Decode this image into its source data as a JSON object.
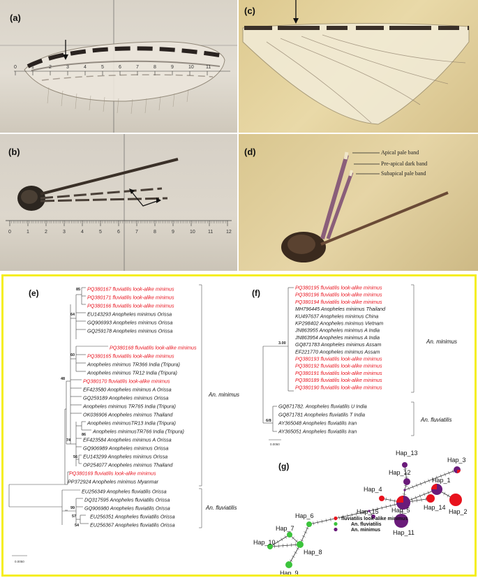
{
  "panels": {
    "a": {
      "label": "(a)",
      "ruler_ticks": [
        "0",
        "1",
        "2",
        "3",
        "4",
        "5",
        "6",
        "7",
        "8",
        "9",
        "10",
        "11"
      ]
    },
    "b": {
      "label": "(b)",
      "ruler_ticks": [
        "0",
        "1",
        "2",
        "3",
        "4",
        "5",
        "6",
        "7",
        "8",
        "9",
        "10",
        "11",
        "12"
      ]
    },
    "c": {
      "label": "(c)"
    },
    "d": {
      "label": "(d)",
      "annotations": [
        "Apical pale band",
        "Pre-apical dark band",
        "Subapical pale band"
      ]
    },
    "e": {
      "label": "(e)",
      "tips": [
        {
          "text": "PQ380167 fluviatilis look-alike minimus",
          "color": "red"
        },
        {
          "text": "PQ380171 fluviatilis look-alike minimus",
          "color": "red"
        },
        {
          "text": "PQ380166 fluviatilis look-alike minimus",
          "color": "red"
        },
        {
          "text": "EU143293 Anopheles minimus Orissa",
          "color": "black"
        },
        {
          "text": "GQ906993 Anopheles minimus Orissa",
          "color": "black"
        },
        {
          "text": "GQ259178 Anopheles minimus Orissa",
          "color": "black"
        },
        {
          "text": "PQ380168 fluviatilis look-alike minimus",
          "color": "red"
        },
        {
          "text": "PQ380165 fluviatilis look-alike minimus",
          "color": "red"
        },
        {
          "text": "Anopheles minimus TR366 India (Tripura)",
          "color": "black"
        },
        {
          "text": "Anopheles minimus TR12 India (Tripura)",
          "color": "black"
        },
        {
          "text": "PQ380170 fluviatilis look-alike minimus",
          "color": "red"
        },
        {
          "text": "EF423580 Anopheles minimus A Orissa",
          "color": "black"
        },
        {
          "text": "GQ259189 Anopheles minimus Orissa",
          "color": "black"
        },
        {
          "text": "Anopheles minimus TR765 India (Tripura)",
          "color": "black"
        },
        {
          "text": "OK036906 Anopheles minimus Thailand",
          "color": "black"
        },
        {
          "text": "Anopheles minimusTR13 India (Tripura)",
          "color": "black"
        },
        {
          "text": "Anopheles minimusTR766 India (Tripura)",
          "color": "black"
        },
        {
          "text": "EF423584 Anopheles minimus A Orissa",
          "color": "black"
        },
        {
          "text": "GQ906989 Anopheles minimus Orissa",
          "color": "black"
        },
        {
          "text": "EU143299 Anopheles minimus Orissa",
          "color": "black"
        },
        {
          "text": "OP254077 Anopheles minimus Thailand",
          "color": "black"
        },
        {
          "text": "PQ380169 fluviatilis look-alike minimus",
          "color": "red"
        },
        {
          "text": "PP372924 Anopheles minimus Myanmar",
          "color": "black"
        },
        {
          "text": "EU256349 Anopheles fluviatilis Orissa",
          "color": "black"
        },
        {
          "text": "DQ317595 Anopheles fluviatilis Orissa",
          "color": "black"
        },
        {
          "text": "GQ906980 Anopheles fluviatilis Orissa",
          "color": "black"
        },
        {
          "text": "EU256351 Anopheles fluviatilis Orissa",
          "color": "black"
        },
        {
          "text": "EU256367 Anopheles fluviatilis Orissa",
          "color": "black"
        }
      ],
      "bootstrap": [
        "85",
        "64",
        "60",
        "48",
        "74",
        "86",
        "56",
        "99",
        "57",
        "54"
      ],
      "clades": [
        "An. minimus",
        "An. fluviatilis"
      ],
      "scale": "0.0050"
    },
    "f": {
      "label": "(f)",
      "tips": [
        {
          "text": "PQ380195 fluviatilis look-alike minimus",
          "color": "red"
        },
        {
          "text": "PQ380196 fluviatilis look-alike minimus",
          "color": "red"
        },
        {
          "text": "PQ380194 fluviatilis look-alike minimus",
          "color": "red"
        },
        {
          "text": "MH796445 Anopheles minimus Thailand",
          "color": "black"
        },
        {
          "text": "KU497637 Anopheles minimus China",
          "color": "black"
        },
        {
          "text": "KP298402 Anopheles minimus Vietnam",
          "color": "black"
        },
        {
          "text": "JN863955 Anopheles minimus A India",
          "color": "black"
        },
        {
          "text": "JN863954 Anopheles minimus A India",
          "color": "black"
        },
        {
          "text": "GQ871783 Anopheles minimus Assam",
          "color": "black"
        },
        {
          "text": "EF221770 Anopheles minimus Assam",
          "color": "black"
        },
        {
          "text": "PQ380193 fluviatilis look-alike minimus",
          "color": "red"
        },
        {
          "text": "PQ380192 fluviatilis look-alike minimus",
          "color": "red"
        },
        {
          "text": "PQ380191 fluviatilis look-alike minimus",
          "color": "red"
        },
        {
          "text": "PQ380189 fluviatilis look-alike minimus",
          "color": "red"
        },
        {
          "text": "PQ380190 fluviatilis look-alike minimus",
          "color": "red"
        },
        {
          "text": "GQ871782. Anopheles fluviatilis U India",
          "color": "black"
        },
        {
          "text": "GQ871781 Anopheles fluviatilis T India",
          "color": "black"
        },
        {
          "text": "AY365048 Anopheles fluviatilis Iran",
          "color": "black"
        },
        {
          "text": "AY365051 Anopheles fluviatilis Iran",
          "color": "black"
        }
      ],
      "bootstrap": [
        "3.00",
        "6/8"
      ],
      "clades": [
        "An. minimus",
        "An. fluviatilis"
      ],
      "scale": "0.0050"
    },
    "g": {
      "label": "(g)",
      "haplotypes": [
        "Hap_1",
        "Hap_2",
        "Hap_3",
        "Hap_4",
        "Hap_5",
        "Hap_6",
        "Hap_7",
        "Hap_8",
        "Hap_9",
        "Hap_10",
        "Hap_11",
        "Hap_12",
        "Hap_13",
        "Hap_14",
        "Hap_15"
      ],
      "legend": [
        {
          "label": "fluviatilis look-alike minimus",
          "color": "#e8121d"
        },
        {
          "label": "An. fluviatilis",
          "color": "#3cc43c"
        },
        {
          "label": "An. minimus",
          "color": "#6a1b7a"
        }
      ]
    }
  }
}
